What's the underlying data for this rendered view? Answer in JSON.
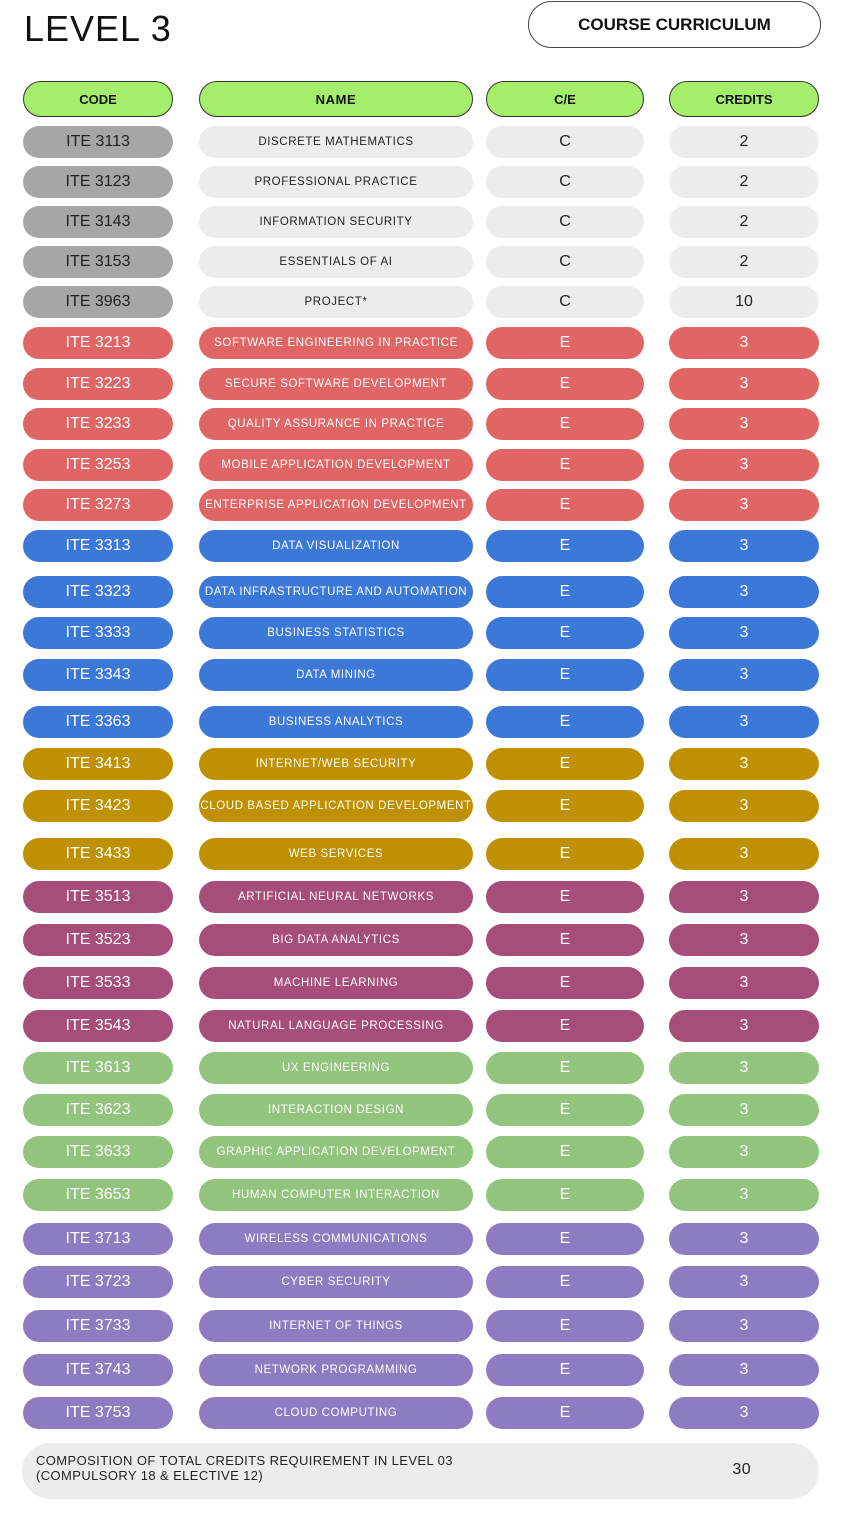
{
  "title": "LEVEL 3",
  "badge": "COURSE CURRICULUM",
  "headers": [
    "CODE",
    "NAME",
    "C/E",
    "CREDITS"
  ],
  "groups": {
    "compulsory": {
      "bg": "#a6a6a6",
      "bg2": "#ececec",
      "fg": "#222"
    },
    "red": {
      "bg": "#e06666",
      "fg": "#ffffff"
    },
    "blue": {
      "bg": "#3c78d8",
      "fg": "#ffffff"
    },
    "gold": {
      "bg": "#bf9000",
      "fg": "#ffffff"
    },
    "plum": {
      "bg": "#a64d79",
      "fg": "#ffffff"
    },
    "green": {
      "bg": "#93c47d",
      "fg": "#ffffff"
    },
    "purple": {
      "bg": "#8e7cc3",
      "fg": "#ffffff"
    }
  },
  "rows": [
    {
      "code": "ITE 3113",
      "name": "DISCRETE MATHEMATICS",
      "ce": "C",
      "credits": "2",
      "group": "compulsory"
    },
    {
      "code": "ITE 3123",
      "name": "PROFESSIONAL PRACTICE",
      "ce": "C",
      "credits": "2",
      "group": "compulsory"
    },
    {
      "code": "ITE 3143",
      "name": "INFORMATION SECURITY",
      "ce": "C",
      "credits": "2",
      "group": "compulsory"
    },
    {
      "code": "ITE 3153",
      "name": "ESSENTIALS OF AI",
      "ce": "C",
      "credits": "2",
      "group": "compulsory"
    },
    {
      "code": "ITE 3963",
      "name": "PROJECT*",
      "ce": "C",
      "credits": "10",
      "group": "compulsory"
    },
    {
      "code": "ITE 3213",
      "name": "SOFTWARE ENGINEERING IN PRACTICE",
      "ce": "E",
      "credits": "3",
      "group": "red"
    },
    {
      "code": "ITE 3223",
      "name": "SECURE SOFTWARE DEVELOPMENT",
      "ce": "E",
      "credits": "3",
      "group": "red"
    },
    {
      "code": "ITE 3233",
      "name": "QUALITY ASSURANCE IN PRACTICE",
      "ce": "E",
      "credits": "3",
      "group": "red"
    },
    {
      "code": "ITE 3253",
      "name": "MOBILE APPLICATION DEVELOPMENT",
      "ce": "E",
      "credits": "3",
      "group": "red"
    },
    {
      "code": "ITE 3273",
      "name": "ENTERPRISE APPLICATION DEVELOPMENT",
      "ce": "E",
      "credits": "3",
      "group": "red"
    },
    {
      "code": "ITE 3313",
      "name": "DATA VISUALIZATION",
      "ce": "E",
      "credits": "3",
      "group": "blue"
    },
    {
      "code": "ITE 3323",
      "name": "DATA INFRASTRUCTURE AND AUTOMATION",
      "ce": "E",
      "credits": "3",
      "group": "blue"
    },
    {
      "code": "ITE 3333",
      "name": "BUSINESS STATISTICS",
      "ce": "E",
      "credits": "3",
      "group": "blue"
    },
    {
      "code": "ITE 3343",
      "name": "DATA MINING",
      "ce": "E",
      "credits": "3",
      "group": "blue"
    },
    {
      "code": "ITE 3363",
      "name": "BUSINESS ANALYTICS",
      "ce": "E",
      "credits": "3",
      "group": "blue"
    },
    {
      "code": "ITE 3413",
      "name": "INTERNET/WEB SECURITY",
      "ce": "E",
      "credits": "3",
      "group": "gold"
    },
    {
      "code": "ITE 3423",
      "name": "CLOUD BASED APPLICATION DEVELOPMENT",
      "ce": "E",
      "credits": "3",
      "group": "gold"
    },
    {
      "code": "ITE 3433",
      "name": "WEB SERVICES",
      "ce": "E",
      "credits": "3",
      "group": "gold"
    },
    {
      "code": "ITE 3513",
      "name": "ARTIFICIAL NEURAL NETWORKS",
      "ce": "E",
      "credits": "3",
      "group": "plum"
    },
    {
      "code": "ITE 3523",
      "name": "BIG DATA ANALYTICS",
      "ce": "E",
      "credits": "3",
      "group": "plum"
    },
    {
      "code": "ITE 3533",
      "name": "MACHINE LEARNING",
      "ce": "E",
      "credits": "3",
      "group": "plum"
    },
    {
      "code": "ITE 3543",
      "name": "NATURAL LANGUAGE PROCESSING",
      "ce": "E",
      "credits": "3",
      "group": "plum"
    },
    {
      "code": "ITE 3613",
      "name": "UX ENGINEERING",
      "ce": "E",
      "credits": "3",
      "group": "green"
    },
    {
      "code": "ITE 3623",
      "name": "INTERACTION DESIGN",
      "ce": "E",
      "credits": "3",
      "group": "green"
    },
    {
      "code": "ITE 3633",
      "name": "GRAPHIC APPLICATION DEVELOPMENT",
      "ce": "E",
      "credits": "3",
      "group": "green"
    },
    {
      "code": "ITE 3653",
      "name": "HUMAN COMPUTER INTERACTION",
      "ce": "E",
      "credits": "3",
      "group": "green"
    },
    {
      "code": "ITE 3713",
      "name": "WIRELESS COMMUNICATIONS",
      "ce": "E",
      "credits": "3",
      "group": "purple"
    },
    {
      "code": "ITE 3723",
      "name": "CYBER SECURITY",
      "ce": "E",
      "credits": "3",
      "group": "purple"
    },
    {
      "code": "ITE 3733",
      "name": "INTERNET OF THINGS",
      "ce": "E",
      "credits": "3",
      "group": "purple"
    },
    {
      "code": "ITE 3743",
      "name": "NETWORK PROGRAMMING",
      "ce": "E",
      "credits": "3",
      "group": "purple"
    },
    {
      "code": "ITE 3753",
      "name": "CLOUD COMPUTING",
      "ce": "E",
      "credits": "3",
      "group": "purple"
    }
  ],
  "footer": {
    "line1": "COMPOSITION OF TOTAL CREDITS REQUIREMENT IN LEVEL 03",
    "line2": "(COMPULSORY 18 & ELECTIVE 12)",
    "total": "30"
  }
}
